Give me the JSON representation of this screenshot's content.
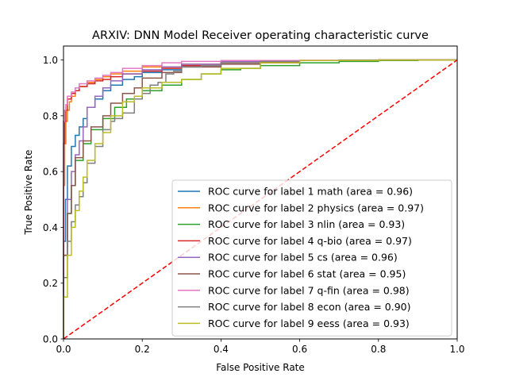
{
  "chart_data": {
    "type": "line",
    "title": "ARXIV: DNN Model Receiver operating characteristic curve",
    "xlabel": "False Positive Rate",
    "ylabel": "True Positive Rate",
    "xlim": [
      0.0,
      1.0
    ],
    "ylim": [
      0.0,
      1.05
    ],
    "xticks": [
      "0.0",
      "0.2",
      "0.4",
      "0.6",
      "0.8",
      "1.0"
    ],
    "yticks": [
      "0.0",
      "0.2",
      "0.4",
      "0.6",
      "0.8",
      "1.0"
    ],
    "grid": false,
    "legend_position": "lower right",
    "series": [
      {
        "name": "ROC curve for label 1 math (area = 0.96)",
        "color": "#1f77b4",
        "x": [
          0,
          0.005,
          0.01,
          0.02,
          0.03,
          0.04,
          0.05,
          0.06,
          0.08,
          0.1,
          0.12,
          0.15,
          0.18,
          0.2,
          0.25,
          0.3,
          0.4,
          0.5,
          0.6,
          0.8,
          1.0
        ],
        "y": [
          0,
          0.35,
          0.5,
          0.62,
          0.69,
          0.73,
          0.76,
          0.79,
          0.83,
          0.86,
          0.89,
          0.91,
          0.93,
          0.94,
          0.955,
          0.965,
          0.98,
          0.99,
          0.995,
          0.998,
          1.0
        ]
      },
      {
        "name": "ROC curve for label 2 physics (area = 0.97)",
        "color": "#ff7f0e",
        "x": [
          0,
          0.003,
          0.006,
          0.01,
          0.015,
          0.02,
          0.03,
          0.04,
          0.06,
          0.08,
          0.1,
          0.12,
          0.15,
          0.2,
          0.3,
          0.4,
          0.6,
          0.8,
          1.0
        ],
        "y": [
          0,
          0.55,
          0.7,
          0.78,
          0.82,
          0.85,
          0.87,
          0.89,
          0.905,
          0.92,
          0.93,
          0.94,
          0.95,
          0.96,
          0.975,
          0.985,
          0.995,
          0.998,
          1.0
        ]
      },
      {
        "name": "ROC curve for label 3 nlin (area = 0.93)",
        "color": "#2ca02c",
        "x": [
          0,
          0.01,
          0.02,
          0.03,
          0.05,
          0.07,
          0.1,
          0.13,
          0.16,
          0.2,
          0.25,
          0.3,
          0.35,
          0.4,
          0.45,
          0.5,
          0.6,
          0.7,
          0.8,
          0.9,
          1.0
        ],
        "y": [
          0,
          0.3,
          0.45,
          0.55,
          0.64,
          0.7,
          0.75,
          0.79,
          0.83,
          0.86,
          0.89,
          0.91,
          0.93,
          0.95,
          0.965,
          0.97,
          0.98,
          0.99,
          0.995,
          0.998,
          1.0
        ]
      },
      {
        "name": "ROC curve for label 4 q-bio (area = 0.97)",
        "color": "#d62728",
        "x": [
          0,
          0.003,
          0.006,
          0.01,
          0.02,
          0.03,
          0.04,
          0.06,
          0.08,
          0.1,
          0.12,
          0.15,
          0.2,
          0.25,
          0.3,
          0.4,
          0.6,
          0.8,
          1.0
        ],
        "y": [
          0,
          0.7,
          0.78,
          0.82,
          0.86,
          0.88,
          0.89,
          0.905,
          0.915,
          0.925,
          0.93,
          0.94,
          0.95,
          0.96,
          0.97,
          0.98,
          0.99,
          0.998,
          1.0
        ]
      },
      {
        "name": "ROC curve for label 5 cs (area = 0.96)",
        "color": "#9467bd",
        "x": [
          0,
          0.01,
          0.02,
          0.03,
          0.04,
          0.05,
          0.06,
          0.08,
          0.1,
          0.12,
          0.15,
          0.2,
          0.25,
          0.3,
          0.4,
          0.6,
          0.8,
          1.0
        ],
        "y": [
          0,
          0.3,
          0.5,
          0.6,
          0.66,
          0.71,
          0.76,
          0.83,
          0.87,
          0.9,
          0.925,
          0.95,
          0.965,
          0.975,
          0.985,
          0.995,
          0.998,
          1.0
        ]
      },
      {
        "name": "ROC curve for label 6 stat (area = 0.95)",
        "color": "#8c564b",
        "x": [
          0,
          0.01,
          0.02,
          0.03,
          0.05,
          0.07,
          0.1,
          0.12,
          0.15,
          0.18,
          0.2,
          0.25,
          0.3,
          0.4,
          0.5,
          0.6,
          0.8,
          1.0
        ],
        "y": [
          0,
          0.3,
          0.45,
          0.55,
          0.65,
          0.71,
          0.76,
          0.8,
          0.845,
          0.88,
          0.9,
          0.935,
          0.955,
          0.975,
          0.985,
          0.992,
          0.998,
          1.0
        ]
      },
      {
        "name": "ROC curve for label 7 q-fin (area = 0.98)",
        "color": "#e377c2",
        "x": [
          0,
          0.003,
          0.006,
          0.01,
          0.02,
          0.03,
          0.04,
          0.06,
          0.08,
          0.1,
          0.12,
          0.15,
          0.2,
          0.25,
          0.3,
          0.4,
          0.6,
          0.8,
          1.0
        ],
        "y": [
          0,
          0.78,
          0.82,
          0.84,
          0.87,
          0.885,
          0.9,
          0.915,
          0.925,
          0.935,
          0.945,
          0.955,
          0.97,
          0.98,
          0.99,
          0.995,
          0.998,
          0.999,
          1.0
        ]
      },
      {
        "name": "ROC curve for label 8 econ (area = 0.90)",
        "color": "#7f7f7f",
        "x": [
          0,
          0.01,
          0.02,
          0.03,
          0.04,
          0.05,
          0.06,
          0.08,
          0.1,
          0.12,
          0.13,
          0.15,
          0.18,
          0.2,
          0.22,
          0.24,
          0.26,
          0.28,
          0.3,
          0.35,
          0.4,
          0.5,
          0.6,
          0.7,
          1.0
        ],
        "y": [
          0,
          0.22,
          0.35,
          0.42,
          0.48,
          0.51,
          0.56,
          0.63,
          0.69,
          0.75,
          0.78,
          0.79,
          0.81,
          0.86,
          0.88,
          0.91,
          0.92,
          0.95,
          0.96,
          0.975,
          0.98,
          0.99,
          0.995,
          0.998,
          1.0
        ]
      },
      {
        "name": "ROC curve for label 9 eess (area = 0.93)",
        "color": "#bcbd22",
        "x": [
          0,
          0.01,
          0.02,
          0.03,
          0.04,
          0.05,
          0.06,
          0.08,
          0.1,
          0.12,
          0.15,
          0.18,
          0.2,
          0.25,
          0.3,
          0.35,
          0.4,
          0.5,
          0.6,
          0.8,
          1.0
        ],
        "y": [
          0,
          0.15,
          0.3,
          0.4,
          0.46,
          0.53,
          0.58,
          0.64,
          0.7,
          0.74,
          0.8,
          0.85,
          0.87,
          0.9,
          0.92,
          0.93,
          0.95,
          0.97,
          0.99,
          0.998,
          1.0
        ]
      },
      {
        "name": "",
        "color": "#ff0000",
        "style": "dashed",
        "x": [
          0,
          1.0
        ],
        "y": [
          0,
          1.0
        ]
      }
    ]
  }
}
